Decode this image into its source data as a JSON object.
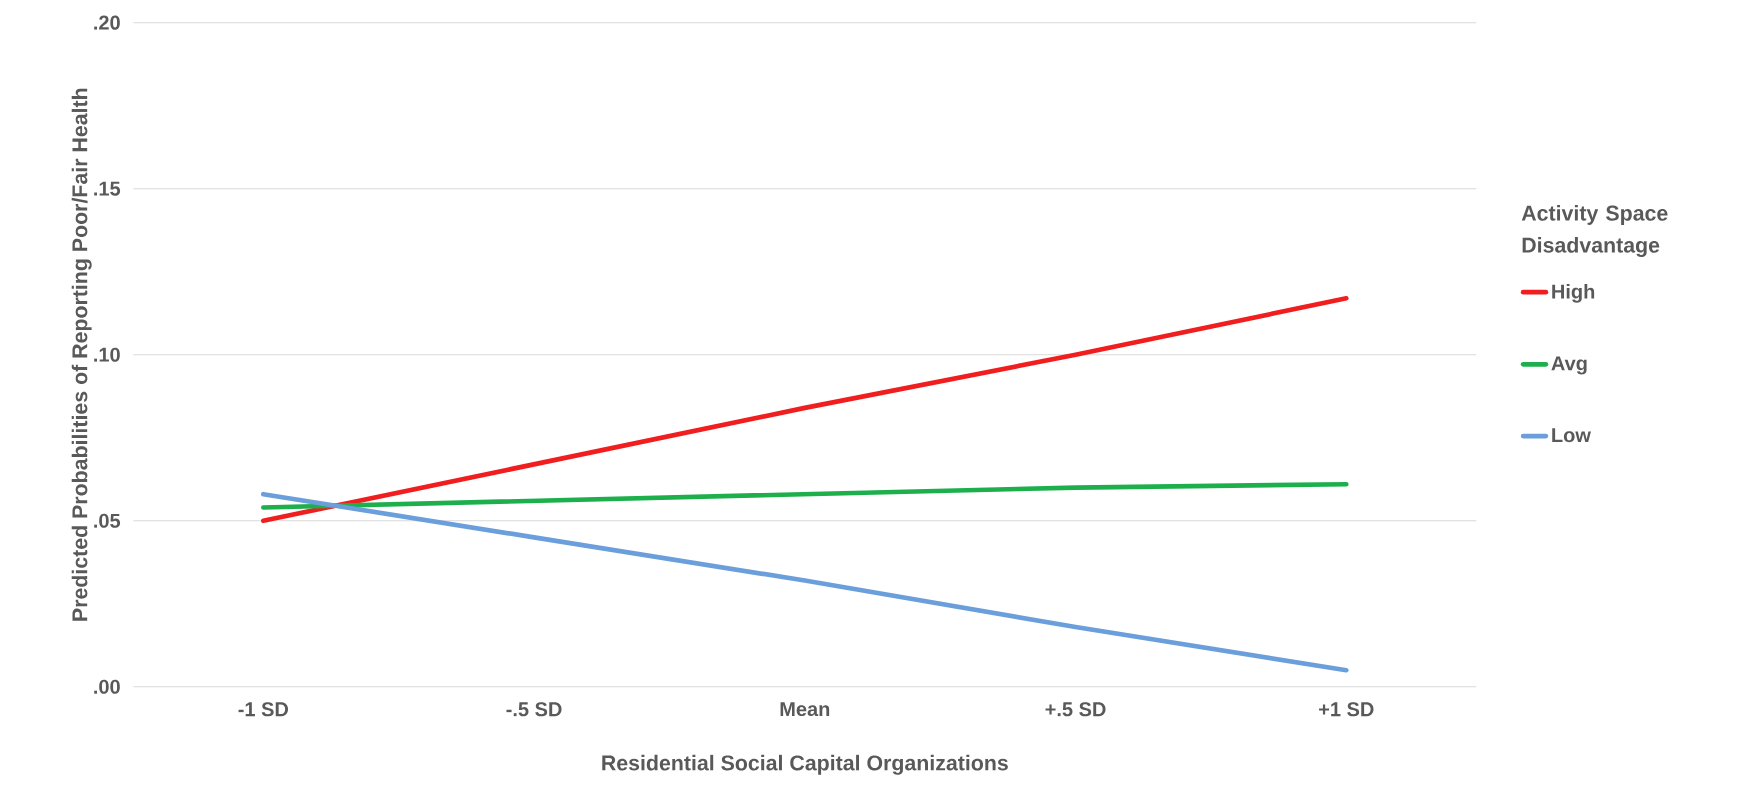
{
  "chart_data": {
    "type": "line",
    "xlabel": "Residential Social Capital Organizations",
    "ylabel": "Predicted Probabilities of Reporting Poor/Fair Health",
    "legend_title": "Activity Space Disadvantage",
    "categories": [
      "-1 SD",
      "-.5 SD",
      "Mean",
      "+.5 SD",
      "+1 SD"
    ],
    "series": [
      {
        "name": "High",
        "color": "#f01e1e",
        "values": [
          0.05,
          0.067,
          0.084,
          0.1,
          0.117
        ]
      },
      {
        "name": "Avg",
        "color": "#1daf4c",
        "values": [
          0.054,
          0.056,
          0.058,
          0.06,
          0.061
        ]
      },
      {
        "name": "Low",
        "color": "#6b9fdb",
        "values": [
          0.058,
          0.045,
          0.032,
          0.018,
          0.005
        ]
      }
    ],
    "ylim": [
      0,
      0.2
    ],
    "yticks": [
      {
        "value": 0,
        "label": ".00"
      },
      {
        "value": 0.05,
        "label": ".05"
      },
      {
        "value": 0.1,
        "label": ".10"
      },
      {
        "value": 0.15,
        "label": ".15"
      },
      {
        "value": 0.2,
        "label": ".20"
      }
    ],
    "grid": "y",
    "legend": "right",
    "marker": "none",
    "line_style": "solid"
  }
}
